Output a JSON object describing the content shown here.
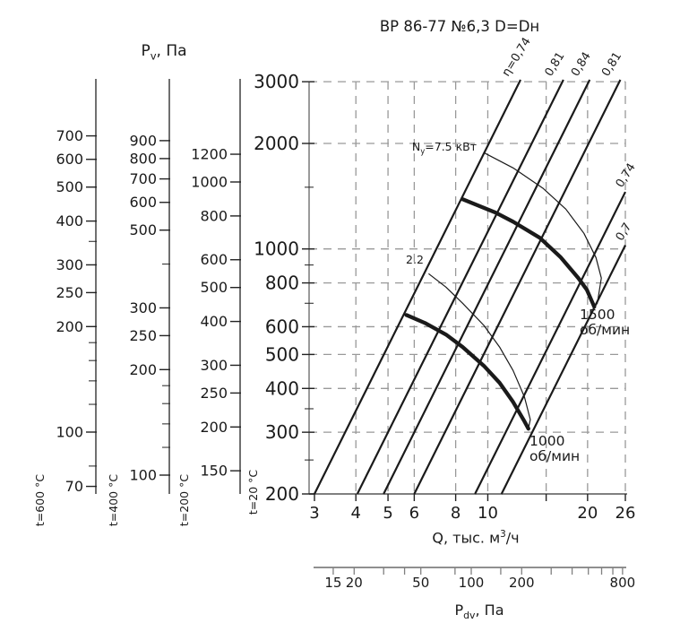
{
  "title": "ВР 86-77 №6,3 D=Dн",
  "colors": {
    "ink": "#1a1a1a",
    "grid": "#999999",
    "frame": "#808080",
    "axis": "#222222"
  },
  "labels": {
    "pv_axis": {
      "pre": "P",
      "sub": "v",
      "post": ", Па"
    },
    "q_axis": {
      "pre": "Q, тыс. м",
      "sup": "3",
      "post": "/ч"
    },
    "pdv_axis": {
      "pre": "P",
      "sub": "dv",
      "post": ", Па"
    },
    "power_upper": {
      "pre": "N",
      "sub": "у",
      "post": "=7.5 кВт"
    },
    "power_lower": "2.2",
    "rpm_upper": {
      "line1": "1500",
      "line2": "об/мин"
    },
    "rpm_lower": {
      "line1": "1000",
      "line2": "об/мин"
    }
  },
  "chart_data": {
    "type": "line",
    "title": "ВР 86-77 №6,3 D=Dн",
    "xlabel": "Q, тыс. м3/ч",
    "ylabel": "Pv, Па",
    "x_axis": {
      "scale": "log",
      "range": [
        3,
        26
      ],
      "tick_labels": [
        3,
        4,
        5,
        6,
        8,
        10,
        20,
        26
      ],
      "ticks": [
        3,
        4,
        5,
        6,
        8,
        10,
        15,
        20,
        26
      ],
      "gridlines": [
        4,
        5,
        6,
        8,
        10,
        15,
        20,
        26
      ]
    },
    "y_axis": {
      "scale": "log",
      "range": [
        200,
        3000
      ],
      "t_label": "t=20 °C",
      "tick_labels": [
        200,
        300,
        400,
        500,
        600,
        800,
        1000,
        2000,
        3000
      ],
      "minor_ticks": [
        250,
        350,
        700,
        900,
        1500
      ],
      "gridlines": [
        300,
        400,
        500,
        600,
        800,
        1000,
        2000,
        3000
      ]
    },
    "aux_pressure_axes": [
      {
        "t_label": "t=600 °C",
        "tick_labels": [
          70,
          100,
          200,
          250,
          300,
          400,
          500,
          600,
          700
        ],
        "minor_ticks": [
          80,
          120,
          140,
          160,
          180,
          350
        ]
      },
      {
        "t_label": "t=400 °C",
        "tick_labels": [
          100,
          200,
          250,
          300,
          500,
          600,
          700,
          800,
          900
        ],
        "minor_ticks": [
          120,
          140,
          160,
          180,
          400
        ]
      },
      {
        "t_label": "t=200 °C",
        "tick_labels": [
          150,
          200,
          250,
          300,
          400,
          500,
          600,
          800,
          1000,
          1200
        ],
        "minor_ticks": []
      }
    ],
    "pdv_axis": {
      "scale": "log",
      "label": "Pdv, Па",
      "tick_labels": [
        15,
        20,
        50,
        100,
        200,
        800
      ],
      "ticks": [
        15,
        20,
        30,
        40,
        50,
        80,
        100,
        150,
        200,
        300,
        400,
        500,
        600,
        700,
        800
      ]
    },
    "efficiency_lines": {
      "p_ref": 200,
      "exponent": 1.9,
      "lines": [
        {
          "label": "η=0,74",
          "q_at_pref": 3.0,
          "label_pos": "top"
        },
        {
          "label": "0,81",
          "q_at_pref": 4.04,
          "label_pos": "top"
        },
        {
          "label": "0,84",
          "q_at_pref": 4.85,
          "label_pos": "top"
        },
        {
          "label": "0,81",
          "q_at_pref": 6.0,
          "label_pos": "top"
        },
        {
          "label": "0,74",
          "q_at_pref": 9.15,
          "label_pos": "right"
        },
        {
          "label": "0,7",
          "q_at_pref": 11.0,
          "label_pos": "right"
        }
      ]
    },
    "rpm_curves": [
      {
        "label": "1500 об/мин",
        "points": [
          [
            8.4,
            1386
          ],
          [
            10.55,
            1270
          ],
          [
            11.92,
            1196
          ],
          [
            14.33,
            1077
          ],
          [
            16.6,
            946
          ],
          [
            18.75,
            826
          ],
          [
            19.9,
            765
          ],
          [
            20.95,
            684
          ]
        ]
      },
      {
        "label": "1000 об/мин",
        "points": [
          [
            5.68,
            648
          ],
          [
            6.46,
            615
          ],
          [
            7.48,
            570
          ],
          [
            8.4,
            525
          ],
          [
            9.73,
            464
          ],
          [
            10.85,
            415
          ],
          [
            11.92,
            366
          ],
          [
            12.9,
            322
          ],
          [
            13.26,
            307
          ]
        ]
      }
    ],
    "power_curves": [
      {
        "label": "Nу=7.5 кВт",
        "points": [
          [
            9.73,
            1882
          ],
          [
            11.92,
            1703
          ],
          [
            14.7,
            1487
          ],
          [
            17.2,
            1299
          ],
          [
            19.5,
            1108
          ],
          [
            21.2,
            945
          ],
          [
            22.0,
            826
          ],
          [
            21.4,
            700
          ],
          [
            20.95,
            684
          ]
        ]
      },
      {
        "label": "2.2",
        "points": [
          [
            6.63,
            850
          ],
          [
            7.48,
            778
          ],
          [
            8.4,
            700
          ],
          [
            9.73,
            605
          ],
          [
            10.85,
            525
          ],
          [
            11.92,
            450
          ],
          [
            12.9,
            378
          ],
          [
            13.43,
            326
          ],
          [
            13.26,
            307
          ]
        ]
      }
    ]
  }
}
